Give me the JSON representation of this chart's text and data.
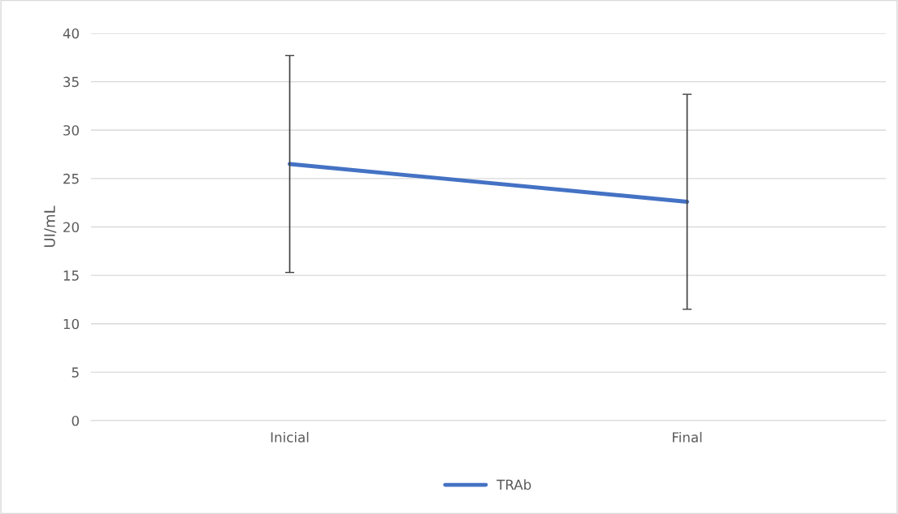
{
  "chart_data": {
    "type": "line",
    "ylabel": "UI/mL",
    "categories": [
      "Inicial",
      "Final"
    ],
    "series": [
      {
        "name": "TRAb",
        "color": "#4472c4",
        "values": [
          26.5,
          22.6
        ],
        "errors": [
          [
            15.3,
            37.7
          ],
          [
            11.5,
            33.7
          ]
        ]
      }
    ],
    "ylim": [
      0,
      40
    ],
    "yticks": [
      0,
      5,
      10,
      15,
      20,
      25,
      30,
      35,
      40
    ],
    "grid": "y",
    "legend": "bottom",
    "marker": "none",
    "line_style": "solid"
  }
}
